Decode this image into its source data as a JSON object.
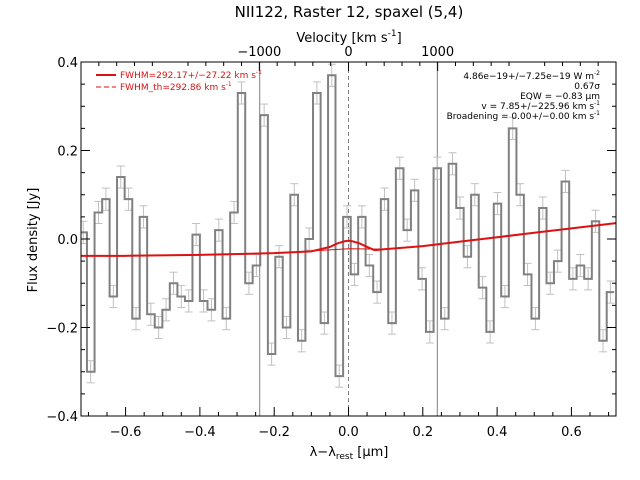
{
  "chart_data": {
    "type": "line",
    "title": "NII122, Raster 12, spaxel (5,4)",
    "xlabel": "λ−λ",
    "xlabel_sub": "rest",
    "xlabel_unit": " [μm]",
    "ylabel": "Flux density [Jy]",
    "top_axis_label": "Velocity [km s",
    "top_axis_label_sup": "-1",
    "top_axis_label_end": "]",
    "xlim": [
      -0.72,
      0.72
    ],
    "ylim": [
      -0.4,
      0.4
    ],
    "x_ticks": [
      -0.6,
      -0.4,
      -0.2,
      0.0,
      0.2,
      0.4,
      0.6
    ],
    "x_tick_labels": [
      "−0.6",
      "−0.4",
      "−0.2",
      "0.0",
      "0.2",
      "0.4",
      "0.6"
    ],
    "y_ticks": [
      -0.4,
      -0.2,
      0.0,
      0.2,
      0.4
    ],
    "y_tick_labels": [
      "−0.4",
      "−0.2",
      "0.0",
      "0.2",
      "0.4"
    ],
    "top_ticks_kms": [
      -1000,
      0,
      1000
    ],
    "top_tick_labels": [
      "−1000",
      "0",
      "1000"
    ],
    "kms_per_um": 4167,
    "fwhm_lines_um": [
      -0.239,
      0.0,
      0.239
    ],
    "legend": {
      "placement": "top-left",
      "items": [
        {
          "text": "FWHM=292.17+/−27.22 km s",
          "sup": "-1",
          "style": "solid"
        },
        {
          "text": "FWHM_th=292.86 km s",
          "sup": "-1",
          "style": "dashed"
        }
      ]
    },
    "annotations": [
      {
        "text": "4.86e−19+/−7.25e−19 W m",
        "sup": "-2"
      },
      {
        "text": "0.67σ",
        "sup": ""
      },
      {
        "text": "EQW = −0.83 μm",
        "sup": ""
      },
      {
        "text": "v = 7.85+/−225.96 km s",
        "sup": "-1"
      },
      {
        "text": "Broadening = 0.00+/−0.00 km s",
        "sup": "-1"
      }
    ],
    "spectrum": {
      "x": [
        -0.714,
        -0.694,
        -0.673,
        -0.653,
        -0.633,
        -0.613,
        -0.592,
        -0.572,
        -0.552,
        -0.532,
        -0.511,
        -0.491,
        -0.471,
        -0.45,
        -0.43,
        -0.41,
        -0.39,
        -0.369,
        -0.349,
        -0.329,
        -0.308,
        -0.288,
        -0.268,
        -0.248,
        -0.227,
        -0.207,
        -0.187,
        -0.167,
        -0.146,
        -0.126,
        -0.106,
        -0.085,
        -0.065,
        -0.045,
        -0.025,
        -0.004,
        0.016,
        0.036,
        0.056,
        0.077,
        0.097,
        0.117,
        0.138,
        0.158,
        0.178,
        0.198,
        0.219,
        0.239,
        0.259,
        0.28,
        0.3,
        0.32,
        0.34,
        0.361,
        0.381,
        0.401,
        0.421,
        0.442,
        0.462,
        0.482,
        0.503,
        0.523,
        0.543,
        0.563,
        0.584,
        0.604,
        0.624,
        0.645,
        0.665,
        0.685,
        0.705
      ],
      "flux": [
        0.015,
        -0.3,
        0.06,
        0.09,
        -0.13,
        0.14,
        0.09,
        -0.18,
        0.05,
        -0.17,
        -0.2,
        -0.16,
        -0.1,
        -0.13,
        -0.14,
        0.01,
        -0.14,
        -0.16,
        0.02,
        -0.18,
        0.06,
        0.33,
        -0.1,
        -0.06,
        0.28,
        -0.26,
        -0.04,
        -0.2,
        0.1,
        -0.23,
        0.0,
        0.33,
        -0.19,
        0.37,
        -0.31,
        0.05,
        -0.08,
        0.05,
        -0.06,
        -0.12,
        0.09,
        -0.19,
        0.16,
        0.02,
        0.11,
        -0.09,
        -0.21,
        0.16,
        -0.18,
        0.17,
        0.07,
        -0.04,
        0.1,
        -0.11,
        -0.21,
        0.08,
        -0.13,
        0.25,
        0.1,
        -0.08,
        -0.18,
        0.07,
        -0.1,
        -0.05,
        0.13,
        -0.09,
        -0.06,
        -0.09,
        0.04,
        -0.23,
        -0.12
      ],
      "err": 0.025
    },
    "model": {
      "x": [
        -0.72,
        -0.6,
        -0.4,
        -0.2,
        -0.1,
        -0.05,
        -0.03,
        -0.01,
        0.0,
        0.01,
        0.03,
        0.05,
        0.07,
        0.1,
        0.2,
        0.3,
        0.4,
        0.5,
        0.6,
        0.72
      ],
      "y": [
        -0.038,
        -0.038,
        -0.036,
        -0.032,
        -0.028,
        -0.018,
        -0.01,
        -0.005,
        -0.004,
        -0.005,
        -0.01,
        -0.018,
        -0.025,
        -0.023,
        -0.016,
        -0.006,
        0.004,
        0.014,
        0.024,
        0.036
      ]
    },
    "continuum": {
      "x": [
        -0.72,
        -0.4,
        -0.2,
        0.0,
        0.1,
        0.2,
        0.4,
        0.6,
        0.72
      ],
      "y": [
        -0.038,
        -0.036,
        -0.032,
        -0.022,
        -0.023,
        -0.016,
        0.004,
        0.024,
        0.036
      ]
    },
    "colors": {
      "spectrum": "#808080",
      "errorbar": "#c0c0c0",
      "model": "#dd1111",
      "axis": "#000000",
      "fwhm_line": "#808080"
    }
  }
}
